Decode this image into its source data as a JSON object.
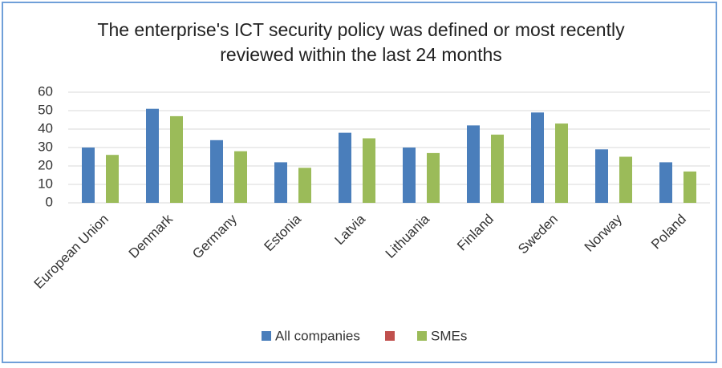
{
  "chart_data": {
    "type": "bar",
    "title": "The enterprise's ICT security policy was defined or most recently reviewed within the last 24 months",
    "categories": [
      "European Union",
      "Denmark",
      "Germany",
      "Estonia",
      "Latvia",
      "Lithuania",
      "Finland",
      "Sweden",
      "Norway",
      "Poland"
    ],
    "series": [
      {
        "name": "All companies",
        "color": "#4a7ebb",
        "values": [
          30,
          51,
          34,
          22,
          38,
          30,
          42,
          49,
          29,
          22
        ]
      },
      {
        "name": "SMEs",
        "color": "#9bbb59",
        "values": [
          26,
          47,
          28,
          19,
          35,
          27,
          37,
          43,
          25,
          17
        ]
      }
    ],
    "ylim": [
      0,
      60
    ],
    "yticks": [
      0,
      10,
      20,
      30,
      40,
      50,
      60
    ],
    "grid": true,
    "legend": "bottom"
  }
}
